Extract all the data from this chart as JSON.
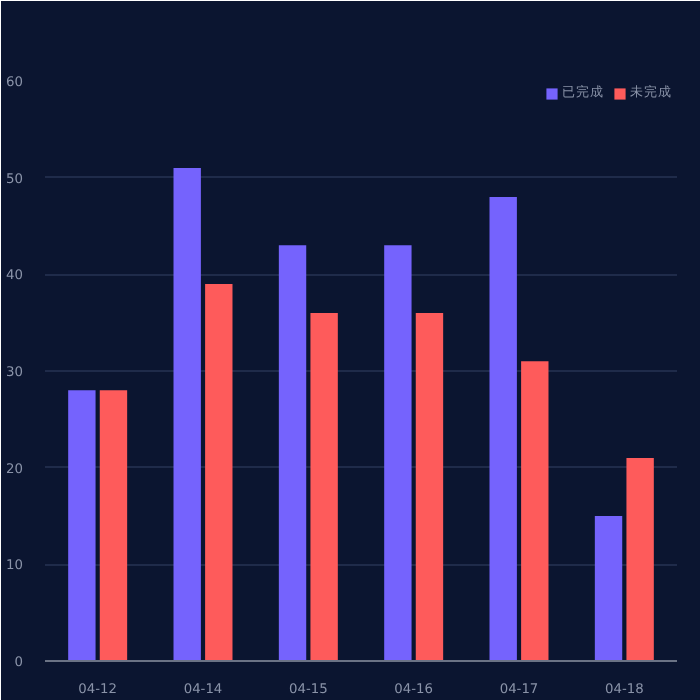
{
  "chart_data": {
    "type": "bar",
    "categories": [
      "04-12",
      "04-14",
      "04-15",
      "04-16",
      "04-17",
      "04-18"
    ],
    "series": [
      {
        "name": "已完成",
        "color": "#7563fd",
        "values": [
          28,
          51,
          43,
          43,
          48,
          15
        ]
      },
      {
        "name": "未完成",
        "color": "#fe5b5b",
        "values": [
          28,
          39,
          36,
          36,
          31,
          21
        ]
      }
    ],
    "ylim": [
      0,
      60
    ],
    "yticks": [
      0,
      10,
      20,
      30,
      40,
      50,
      60
    ],
    "grid": "y",
    "legend": "top right"
  }
}
